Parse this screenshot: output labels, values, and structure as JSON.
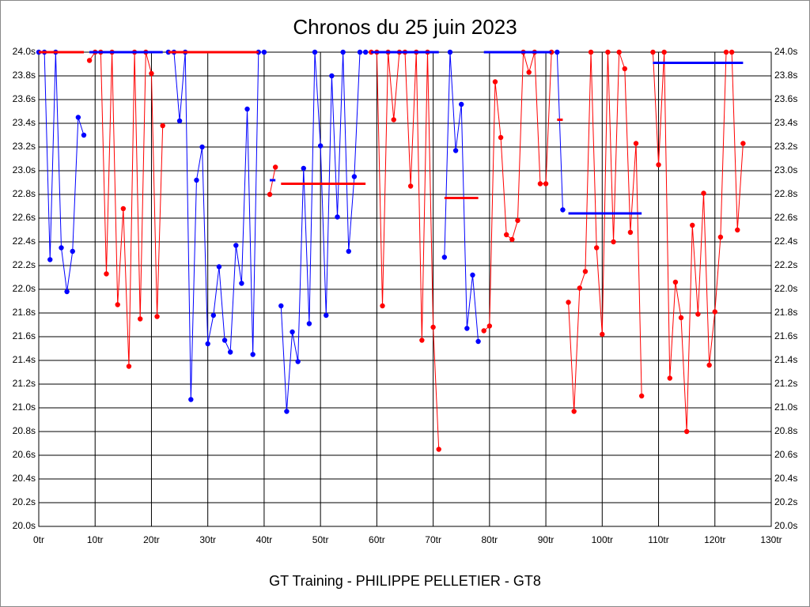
{
  "chart_data": {
    "type": "line",
    "title": "Chronos du 25 juin 2023",
    "subtitle": "GT Training - PHILIPPE PELLETIER - GT8",
    "x": [
      0,
      1,
      2,
      3,
      4,
      5,
      6,
      7,
      8,
      9,
      10,
      11,
      12,
      13,
      14,
      15,
      16,
      17,
      18,
      19,
      20,
      21,
      22,
      23,
      24,
      25,
      26,
      27,
      28,
      29,
      30,
      31,
      32,
      33,
      34,
      35,
      36,
      37,
      38,
      39,
      40,
      41,
      42,
      43,
      44,
      45,
      46,
      47,
      48,
      49,
      50,
      51,
      52,
      53,
      54,
      55,
      56,
      57,
      58,
      59,
      60,
      61,
      62,
      63,
      64,
      65,
      66,
      67,
      68,
      69,
      70,
      71,
      72,
      73,
      74,
      75,
      76,
      77,
      78,
      79,
      80,
      81,
      82,
      83,
      84,
      85,
      86,
      87,
      88,
      89,
      90,
      91,
      92,
      93,
      94,
      95,
      96,
      97,
      98,
      99,
      100,
      101,
      102,
      103,
      104,
      105,
      106,
      107,
      108,
      109,
      110,
      111,
      112,
      113,
      114,
      115,
      116,
      117,
      118,
      119,
      120,
      121,
      122,
      123,
      124,
      125
    ],
    "series": [
      {
        "color": "#0000ff",
        "values": [
          24.0,
          24.0,
          22.25,
          24.0,
          22.35,
          21.98,
          22.32,
          23.45,
          23.3,
          null,
          null,
          null,
          null,
          null,
          null,
          null,
          null,
          null,
          null,
          null,
          null,
          null,
          null,
          24.0,
          24.0,
          23.42,
          24.0,
          21.07,
          22.92,
          23.2,
          21.54,
          21.78,
          22.19,
          21.57,
          21.47,
          22.37,
          22.05,
          23.52,
          21.45,
          24.0,
          24.0,
          null,
          null,
          21.86,
          20.97,
          21.64,
          21.39,
          23.02,
          21.71,
          24.0,
          23.21,
          21.78,
          23.8,
          22.61,
          24.0,
          22.32,
          22.95,
          24.0,
          24.0,
          null,
          null,
          null,
          null,
          null,
          null,
          null,
          null,
          null,
          null,
          null,
          null,
          null,
          22.27,
          24.0,
          23.17,
          23.56,
          21.67,
          22.12,
          21.56,
          null,
          null,
          null,
          null,
          null,
          null,
          null,
          null,
          null,
          null,
          null,
          null,
          null,
          24.0,
          22.67,
          null,
          null,
          null,
          null,
          null,
          null,
          null,
          null,
          null,
          null,
          null,
          null,
          null,
          null,
          null,
          null,
          null,
          null,
          null,
          null,
          null,
          null,
          null,
          null,
          null,
          null,
          null,
          null,
          null,
          null,
          null,
          null
        ]
      },
      {
        "color": "#ff0000",
        "values": [
          null,
          null,
          null,
          null,
          null,
          null,
          null,
          null,
          null,
          23.93,
          24.0,
          24.0,
          22.13,
          24.0,
          21.87,
          22.68,
          21.35,
          24.0,
          21.75,
          24.0,
          23.82,
          21.77,
          23.38,
          null,
          null,
          null,
          null,
          null,
          null,
          null,
          null,
          null,
          null,
          null,
          null,
          null,
          null,
          null,
          null,
          null,
          null,
          22.8,
          23.03,
          null,
          null,
          null,
          null,
          null,
          null,
          null,
          null,
          null,
          null,
          null,
          null,
          null,
          null,
          null,
          null,
          24.0,
          24.0,
          21.86,
          24.0,
          23.43,
          24.0,
          24.0,
          22.87,
          24.0,
          21.57,
          24.0,
          21.68,
          20.65,
          null,
          null,
          null,
          null,
          null,
          null,
          null,
          21.65,
          21.69,
          23.75,
          23.28,
          22.46,
          22.42,
          22.58,
          24.0,
          23.83,
          24.0,
          22.89,
          22.89,
          24.0,
          null,
          null,
          21.89,
          20.97,
          22.01,
          22.15,
          24.0,
          22.35,
          21.62,
          24.0,
          22.4,
          24.0,
          23.86,
          22.48,
          23.23,
          21.1,
          null,
          24.0,
          23.05,
          24.0,
          21.25,
          22.06,
          21.76,
          20.8,
          22.54,
          21.79,
          22.81,
          21.36,
          21.81,
          22.44,
          24.0,
          24.0,
          22.5,
          23.23
        ]
      }
    ],
    "averages": [
      {
        "start": 0,
        "end": 8,
        "value": 24.0,
        "color": "#ff0000"
      },
      {
        "start": 9,
        "end": 22,
        "value": 24.0,
        "color": "#0000ff"
      },
      {
        "start": 23,
        "end": 39,
        "value": 24.0,
        "color": "#ff0000"
      },
      {
        "start": 41,
        "end": 42,
        "value": 22.92,
        "color": "#0000ff"
      },
      {
        "start": 43,
        "end": 58,
        "value": 22.89,
        "color": "#ff0000"
      },
      {
        "start": 59,
        "end": 71,
        "value": 24.0,
        "color": "#0000ff"
      },
      {
        "start": 72,
        "end": 78,
        "value": 22.77,
        "color": "#ff0000"
      },
      {
        "start": 79,
        "end": 91,
        "value": 24.0,
        "color": "#0000ff"
      },
      {
        "start": 92,
        "end": 93,
        "value": 23.43,
        "color": "#ff0000"
      },
      {
        "start": 94,
        "end": 107,
        "value": 22.64,
        "color": "#0000ff"
      },
      {
        "start": 109,
        "end": 125,
        "value": 23.91,
        "color": "#0000ff"
      }
    ],
    "xlim": [
      0,
      130
    ],
    "xticks": [
      {
        "value": 0,
        "label": "0tr"
      },
      {
        "value": 10,
        "label": "10tr"
      },
      {
        "value": 20,
        "label": "20tr"
      },
      {
        "value": 30,
        "label": "30tr"
      },
      {
        "value": 40,
        "label": "40tr"
      },
      {
        "value": 50,
        "label": "50tr"
      },
      {
        "value": 60,
        "label": "60tr"
      },
      {
        "value": 70,
        "label": "70tr"
      },
      {
        "value": 80,
        "label": "80tr"
      },
      {
        "value": 90,
        "label": "90tr"
      },
      {
        "value": 100,
        "label": "100tr"
      },
      {
        "value": 110,
        "label": "110tr"
      },
      {
        "value": 120,
        "label": "120tr"
      },
      {
        "value": 130,
        "label": "130tr"
      }
    ],
    "ylim": [
      20.0,
      24.0
    ],
    "yticks": [
      {
        "value": 20.0,
        "label": "20.0s"
      },
      {
        "value": 20.2,
        "label": "20.2s"
      },
      {
        "value": 20.4,
        "label": "20.4s"
      },
      {
        "value": 20.6,
        "label": "20.6s"
      },
      {
        "value": 20.8,
        "label": "20.8s"
      },
      {
        "value": 21.0,
        "label": "21.0s"
      },
      {
        "value": 21.2,
        "label": "21.2s"
      },
      {
        "value": 21.4,
        "label": "21.4s"
      },
      {
        "value": 21.6,
        "label": "21.6s"
      },
      {
        "value": 21.8,
        "label": "21.8s"
      },
      {
        "value": 22.0,
        "label": "22.0s"
      },
      {
        "value": 22.2,
        "label": "22.2s"
      },
      {
        "value": 22.4,
        "label": "22.4s"
      },
      {
        "value": 22.6,
        "label": "22.6s"
      },
      {
        "value": 22.8,
        "label": "22.8s"
      },
      {
        "value": 23.0,
        "label": "23.0s"
      },
      {
        "value": 23.2,
        "label": "23.2s"
      },
      {
        "value": 23.4,
        "label": "23.4s"
      },
      {
        "value": 23.6,
        "label": "23.6s"
      },
      {
        "value": 23.8,
        "label": "23.8s"
      },
      {
        "value": 24.0,
        "label": "24.0s"
      }
    ],
    "grid": true
  }
}
